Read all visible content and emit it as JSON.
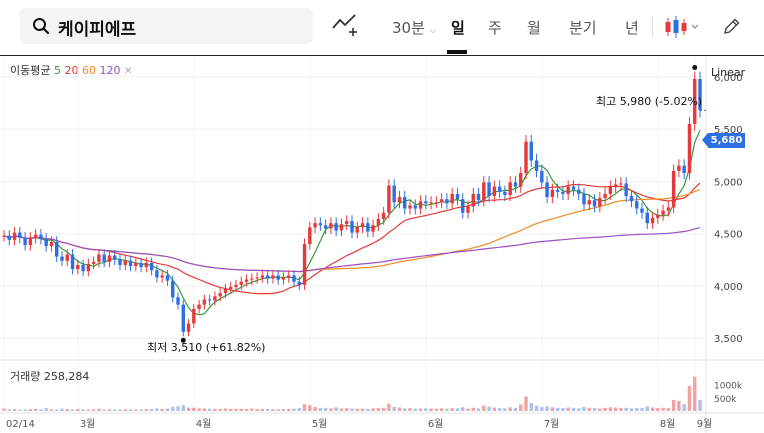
{
  "header": {
    "search_text": "케이피에프",
    "interval_label": "30분",
    "periods": [
      "일",
      "주",
      "월",
      "분기",
      "년"
    ],
    "active_period": "일"
  },
  "legend": {
    "prefix": "이동평균",
    "ma": [
      "5",
      "20",
      "60",
      "120"
    ]
  },
  "scale_label": "Linear",
  "annotations": {
    "high": "최고 5,980 (-5.02%)",
    "low": "최저 3,510 (+61.82%)"
  },
  "current_price": "5,680",
  "volume": {
    "label": "거래량 258,284",
    "ticks": [
      "1000k",
      "500k"
    ]
  },
  "colors": {
    "up": "#e5393d",
    "down": "#2f6fe4",
    "ma5": "#3a9a3a",
    "ma20": "#e53935",
    "ma60": "#f08a24",
    "ma120": "#9b4fc6"
  },
  "chart_data": {
    "type": "candlestick",
    "y_ticks": [
      "6,000",
      "5,500",
      "5,000",
      "4,500",
      "4,000",
      "3,500"
    ],
    "x_ticks": [
      "02/14",
      "3월",
      "4월",
      "5월",
      "6월",
      "7월",
      "8월",
      "9월"
    ],
    "y_range": [
      3300,
      6200
    ],
    "close": [
      4480,
      4440,
      4510,
      4460,
      4390,
      4460,
      4490,
      4450,
      4380,
      4420,
      4280,
      4240,
      4300,
      4160,
      4200,
      4140,
      4210,
      4230,
      4300,
      4230,
      4290,
      4250,
      4200,
      4240,
      4190,
      4220,
      4180,
      4220,
      4150,
      4080,
      4100,
      4050,
      3890,
      3820,
      3560,
      3640,
      3780,
      3820,
      3870,
      3860,
      3900,
      3930,
      3970,
      3990,
      4010,
      4040,
      4060,
      4070,
      4080,
      4100,
      4070,
      4100,
      4060,
      4080,
      4100,
      4040,
      4010,
      4400,
      4560,
      4600,
      4580,
      4550,
      4600,
      4530,
      4590,
      4620,
      4510,
      4560,
      4600,
      4520,
      4580,
      4640,
      4700,
      4960,
      4800,
      4850,
      4740,
      4770,
      4740,
      4810,
      4790,
      4800,
      4800,
      4830,
      4790,
      4880,
      4830,
      4700,
      4760,
      4880,
      4820,
      4990,
      4860,
      4950,
      4900,
      4870,
      4990,
      4950,
      5080,
      5380,
      5200,
      5100,
      4990,
      4850,
      4920,
      4900,
      4880,
      4950,
      4920,
      4880,
      4780,
      4820,
      4760,
      4840,
      4880,
      4950,
      4970,
      4980,
      4860,
      4810,
      4740,
      4700,
      4600,
      4650,
      4680,
      4720,
      4750,
      5100,
      5150,
      5080,
      5550,
      5980,
      5680
    ],
    "volume_k": [
      95,
      60,
      70,
      55,
      60,
      70,
      80,
      65,
      110,
      60,
      55,
      90,
      70,
      60,
      75,
      60,
      55,
      60,
      85,
      55,
      60,
      55,
      55,
      65,
      60,
      55,
      60,
      70,
      75,
      100,
      80,
      90,
      160,
      180,
      220,
      130,
      120,
      100,
      95,
      90,
      85,
      80,
      95,
      80,
      85,
      80,
      75,
      90,
      70,
      80,
      75,
      70,
      65,
      70,
      80,
      90,
      110,
      260,
      220,
      150,
      120,
      110,
      100,
      140,
      100,
      110,
      95,
      85,
      90,
      80,
      100,
      110,
      120,
      280,
      150,
      130,
      100,
      110,
      90,
      95,
      100,
      90,
      85,
      100,
      90,
      110,
      100,
      140,
      90,
      120,
      100,
      200,
      160,
      130,
      110,
      100,
      140,
      120,
      250,
      550,
      300,
      200,
      150,
      180,
      140,
      120,
      110,
      130,
      120,
      100,
      150,
      120,
      110,
      100,
      120,
      140,
      130,
      110,
      120,
      100,
      110,
      120,
      180,
      130,
      110,
      120,
      120,
      420,
      380,
      260,
      950,
      1300,
      420
    ]
  }
}
